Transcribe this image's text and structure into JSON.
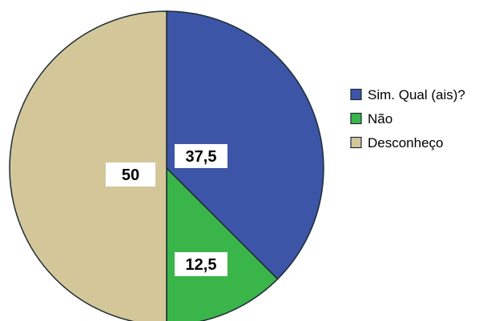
{
  "chart_data": {
    "type": "pie",
    "categories": [
      "Sim. Qual (ais)?",
      "Não",
      "Desconheço"
    ],
    "values": [
      37.5,
      12.5,
      50
    ],
    "data_labels": [
      "37,5",
      "12,5",
      "50"
    ],
    "colors": [
      "#3d55a6",
      "#39b54a",
      "#d3c79a"
    ],
    "start_angle": "12 o'clock",
    "direction": "clockwise",
    "legend_position": "right",
    "title": ""
  }
}
